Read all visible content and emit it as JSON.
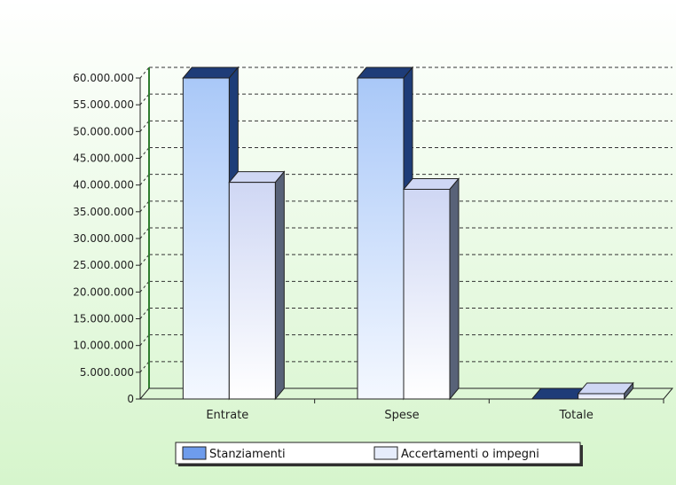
{
  "chart_data": {
    "type": "bar",
    "categories": [
      "Entrate",
      "Spese",
      "Totale"
    ],
    "series": [
      {
        "name": "Stanziamenti",
        "values": [
          60000000,
          60000000,
          0
        ]
      },
      {
        "name": "Accertamenti o impegni",
        "values": [
          40500000,
          39200000,
          1000000
        ]
      }
    ],
    "ylim": [
      0,
      60000000
    ],
    "yticks": [
      {
        "value": 0,
        "label": "0"
      },
      {
        "value": 5000000,
        "label": "5.000.000"
      },
      {
        "value": 10000000,
        "label": "10.000.000"
      },
      {
        "value": 15000000,
        "label": "15.000.000"
      },
      {
        "value": 20000000,
        "label": "20.000.000"
      },
      {
        "value": 25000000,
        "label": "25.000.000"
      },
      {
        "value": 30000000,
        "label": "30.000.000"
      },
      {
        "value": 35000000,
        "label": "35.000.000"
      },
      {
        "value": 40000000,
        "label": "40.000.000"
      },
      {
        "value": 45000000,
        "label": "45.000.000"
      },
      {
        "value": 50000000,
        "label": "50.000.000"
      },
      {
        "value": 55000000,
        "label": "55.000.000"
      },
      {
        "value": 60000000,
        "label": "60.000.000"
      }
    ],
    "grid": true,
    "legend_position": "bottom",
    "style": "3d",
    "colors": {
      "Stanziamenti_top": "#a9c8f8",
      "Stanziamenti_bottom": "#f4f8ff",
      "Stanziamenti_side": "#1e3c78",
      "Accertamenti_top": "#cfd7f4",
      "Accertamenti_bottom": "#ffffff",
      "Accertamenti_side": "#586278",
      "background_top": "#ffffff",
      "background_bottom": "#d6f5cc",
      "axis_wall": "#2f7d2f"
    }
  }
}
